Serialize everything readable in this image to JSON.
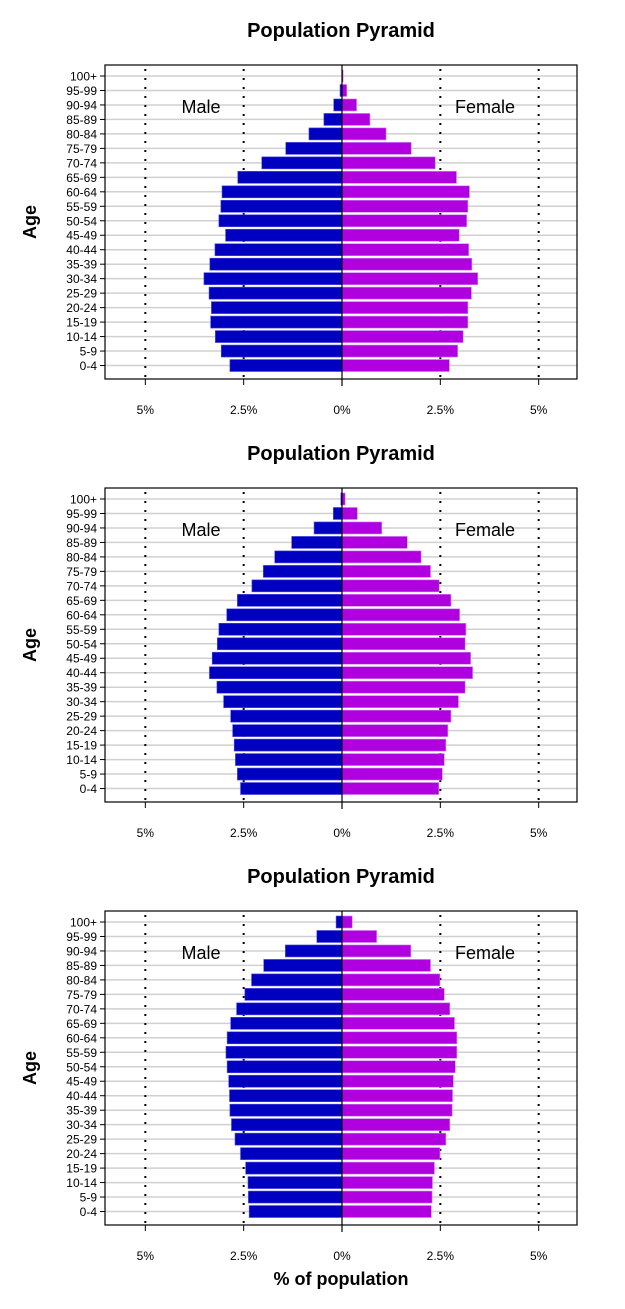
{
  "chart_data": [
    {
      "type": "bar",
      "orientation": "horizontal-pyramid",
      "title": "Population Pyramid",
      "ylabel": "Age",
      "xlabel": "",
      "xlim": [
        -6,
        6
      ],
      "xticks": [
        -5,
        -2.5,
        0,
        2.5,
        5
      ],
      "xtick_labels": [
        "5%",
        "2.5%",
        "0%",
        "2.5%",
        "5%"
      ],
      "grid": true,
      "categories": [
        "100+",
        "95-99",
        "90-94",
        "85-89",
        "80-84",
        "75-79",
        "70-74",
        "65-69",
        "60-64",
        "55-59",
        "50-54",
        "45-49",
        "40-44",
        "35-39",
        "30-34",
        "25-29",
        "20-24",
        "15-19",
        "10-14",
        "5-9",
        "0-4"
      ],
      "series": [
        {
          "name": "Male",
          "color": "#0000c0",
          "values": [
            0.0,
            0.05,
            0.21,
            0.46,
            0.84,
            1.43,
            2.04,
            2.65,
            3.05,
            3.08,
            3.13,
            2.96,
            3.23,
            3.36,
            3.51,
            3.38,
            3.32,
            3.34,
            3.22,
            3.07,
            2.85
          ]
        },
        {
          "name": "Female",
          "color": "#b000e0",
          "values": [
            0.03,
            0.12,
            0.37,
            0.71,
            1.12,
            1.76,
            2.37,
            2.91,
            3.24,
            3.2,
            3.17,
            2.98,
            3.22,
            3.3,
            3.45,
            3.29,
            3.2,
            3.2,
            3.08,
            2.94,
            2.73
          ]
        }
      ]
    },
    {
      "type": "bar",
      "orientation": "horizontal-pyramid",
      "title": "Population Pyramid",
      "ylabel": "Age",
      "xlabel": "",
      "xlim": [
        -6,
        6
      ],
      "xticks": [
        -5,
        -2.5,
        0,
        2.5,
        5
      ],
      "xtick_labels": [
        "5%",
        "2.5%",
        "0%",
        "2.5%",
        "5%"
      ],
      "grid": true,
      "categories": [
        "100+",
        "95-99",
        "90-94",
        "85-89",
        "80-84",
        "75-79",
        "70-74",
        "65-69",
        "60-64",
        "55-59",
        "50-54",
        "45-49",
        "40-44",
        "35-39",
        "30-34",
        "25-29",
        "20-24",
        "15-19",
        "10-14",
        "5-9",
        "0-4"
      ],
      "series": [
        {
          "name": "Male",
          "color": "#0000c0",
          "values": [
            0.03,
            0.22,
            0.71,
            1.28,
            1.71,
            2.0,
            2.29,
            2.66,
            2.93,
            3.13,
            3.17,
            3.3,
            3.37,
            3.18,
            3.01,
            2.83,
            2.78,
            2.74,
            2.71,
            2.66,
            2.58
          ]
        },
        {
          "name": "Female",
          "color": "#b000e0",
          "values": [
            0.08,
            0.39,
            1.01,
            1.66,
            2.01,
            2.25,
            2.47,
            2.77,
            2.99,
            3.15,
            3.13,
            3.27,
            3.32,
            3.13,
            2.96,
            2.77,
            2.69,
            2.64,
            2.6,
            2.55,
            2.46
          ]
        }
      ]
    },
    {
      "type": "bar",
      "orientation": "horizontal-pyramid",
      "title": "Population Pyramid",
      "ylabel": "Age",
      "xlabel": "% of population",
      "xlim": [
        -6,
        6
      ],
      "xticks": [
        -5,
        -2.5,
        0,
        2.5,
        5
      ],
      "xtick_labels": [
        "5%",
        "2.5%",
        "0%",
        "2.5%",
        "5%"
      ],
      "grid": true,
      "categories": [
        "100+",
        "95-99",
        "90-94",
        "85-89",
        "80-84",
        "75-79",
        "70-74",
        "65-69",
        "60-64",
        "55-59",
        "50-54",
        "45-49",
        "40-44",
        "35-39",
        "30-34",
        "25-29",
        "20-24",
        "15-19",
        "10-14",
        "5-9",
        "0-4"
      ],
      "series": [
        {
          "name": "Male",
          "color": "#0000c0",
          "values": [
            0.15,
            0.64,
            1.44,
            1.99,
            2.3,
            2.47,
            2.68,
            2.83,
            2.92,
            2.95,
            2.92,
            2.88,
            2.86,
            2.85,
            2.81,
            2.72,
            2.58,
            2.45,
            2.39,
            2.38,
            2.36
          ]
        },
        {
          "name": "Female",
          "color": "#b000e0",
          "values": [
            0.26,
            0.88,
            1.75,
            2.25,
            2.49,
            2.6,
            2.74,
            2.86,
            2.92,
            2.92,
            2.88,
            2.83,
            2.81,
            2.8,
            2.74,
            2.64,
            2.49,
            2.35,
            2.3,
            2.29,
            2.27
          ]
        }
      ]
    }
  ]
}
